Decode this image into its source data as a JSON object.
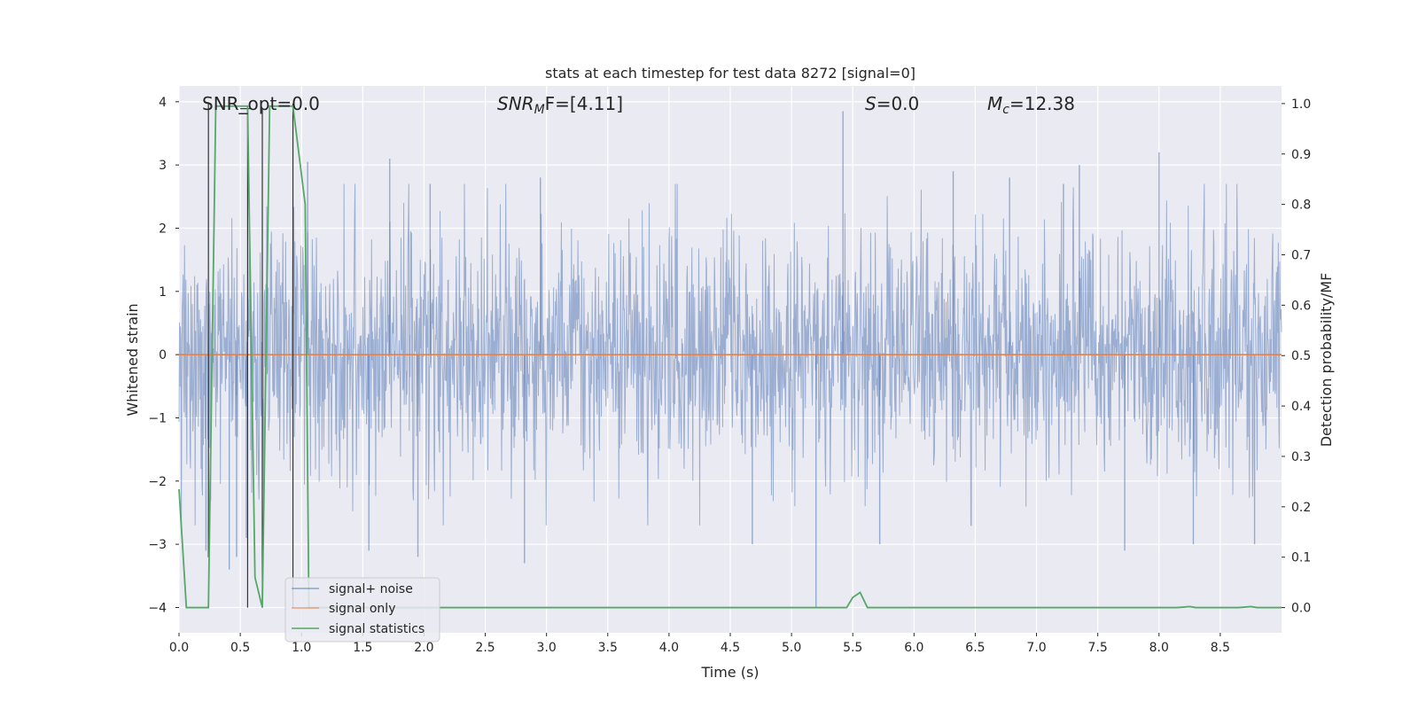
{
  "chart_data": {
    "type": "line",
    "title": "stats at each timestep for test data 8272 [signal=0]",
    "xlabel": "Time (s)",
    "ylabel_left": "Whitened strain",
    "ylabel_right": "Detection probability/MF",
    "xlim": [
      0,
      9.0
    ],
    "ylim_left": [
      -4.4,
      4.25
    ],
    "ylim_right": [
      -0.05,
      1.035
    ],
    "x_ticks": [
      0.0,
      0.5,
      1.0,
      1.5,
      2.0,
      2.5,
      3.0,
      3.5,
      4.0,
      4.5,
      5.0,
      5.5,
      6.0,
      6.5,
      7.0,
      7.5,
      8.0,
      8.5
    ],
    "x_tick_labels": [
      "0.0",
      "0.5",
      "1.0",
      "1.5",
      "2.0",
      "2.5",
      "3.0",
      "3.5",
      "4.0",
      "4.5",
      "5.0",
      "5.5",
      "6.0",
      "6.5",
      "7.0",
      "7.5",
      "8.0",
      "8.5"
    ],
    "y_left_ticks": [
      -4,
      -3,
      -2,
      -1,
      0,
      1,
      2,
      3,
      4
    ],
    "y_left_tick_labels": [
      "−4",
      "−3",
      "−2",
      "−1",
      "0",
      "1",
      "2",
      "3",
      "4"
    ],
    "y_right_ticks": [
      0.0,
      0.1,
      0.2,
      0.3,
      0.4,
      0.5,
      0.6,
      0.7,
      0.8,
      0.9,
      1.0
    ],
    "y_right_tick_labels": [
      "0.0",
      "0.1",
      "0.2",
      "0.3",
      "0.4",
      "0.5",
      "0.6",
      "0.7",
      "0.8",
      "0.9",
      "1.0"
    ],
    "grid": true,
    "annotations": {
      "snr_opt": "SNR_opt=0.0",
      "snr_mf_main": "SNR",
      "snr_mf_sub": "M",
      "snr_mf_rest": "F=[4.11]",
      "s_sym": "S",
      "s_val": "=0.0",
      "mc_sym": "M",
      "mc_sub": "c",
      "mc_val": "=12.38"
    },
    "legend": {
      "position": "lower-left",
      "entries": [
        "signal+ noise",
        "signal only",
        "signal statistics"
      ]
    },
    "series": [
      {
        "name": "signal+ noise",
        "axis": "left",
        "color": "#4c72b0",
        "kind": "noise",
        "typical_range": [
          -1.7,
          1.5
        ],
        "spikes": [
          {
            "x": 0.22,
            "y": -3.1
          },
          {
            "x": 0.41,
            "y": -3.4
          },
          {
            "x": 0.47,
            "y": -3.2
          },
          {
            "x": 0.55,
            "y": -2.9
          },
          {
            "x": 1.05,
            "y": 3.05
          },
          {
            "x": 1.55,
            "y": -3.1
          },
          {
            "x": 1.72,
            "y": 3.1
          },
          {
            "x": 1.95,
            "y": -3.2
          },
          {
            "x": 2.05,
            "y": 2.7
          },
          {
            "x": 2.82,
            "y": -3.3
          },
          {
            "x": 2.95,
            "y": 2.8
          },
          {
            "x": 4.68,
            "y": -3.0
          },
          {
            "x": 5.2,
            "y": -4.0
          },
          {
            "x": 5.42,
            "y": 3.85
          },
          {
            "x": 5.72,
            "y": -3.0
          },
          {
            "x": 6.32,
            "y": 2.9
          },
          {
            "x": 6.78,
            "y": 2.8
          },
          {
            "x": 7.22,
            "y": 2.7
          },
          {
            "x": 7.35,
            "y": 3.0
          },
          {
            "x": 7.72,
            "y": -3.1
          },
          {
            "x": 8.0,
            "y": 3.2
          },
          {
            "x": 8.28,
            "y": -3.0
          },
          {
            "x": 8.78,
            "y": -3.0
          }
        ]
      },
      {
        "name": "signal only",
        "axis": "left",
        "color": "#dd8452",
        "x": [
          0,
          9.0
        ],
        "y": [
          0,
          0
        ]
      },
      {
        "name": "signal statistics",
        "axis": "right",
        "color": "#55a868",
        "x": [
          0.0,
          0.06,
          0.24,
          0.3,
          0.56,
          0.62,
          0.68,
          0.74,
          0.93,
          1.03,
          1.06,
          5.45,
          5.5,
          5.56,
          5.62,
          8.15,
          8.25,
          8.3,
          8.65,
          8.75,
          8.8,
          9.0
        ],
        "y": [
          0.235,
          0.0,
          0.0,
          0.995,
          0.995,
          0.06,
          0.0,
          0.995,
          0.995,
          0.8,
          0.0,
          0.0,
          0.02,
          0.03,
          0.0,
          0.0,
          0.002,
          0.0,
          0.0,
          0.002,
          0.0,
          0.0
        ]
      }
    ],
    "vertical_markers": {
      "color": "#333333",
      "lines": [
        {
          "x": 0.24,
          "y_top_right": 1.0,
          "y_bottom_right": 0.1
        },
        {
          "x": 0.56,
          "y_top_right": 0.99,
          "y_bottom_right": 0.0
        },
        {
          "x": 0.68,
          "y_top_right": 0.99,
          "y_bottom_right": 0.0
        },
        {
          "x": 0.93,
          "y_top_right": 1.0,
          "y_bottom_right": 0.0
        }
      ],
      "caps": [
        {
          "x0": 0.5,
          "x1": 0.58,
          "y_right": 0.99
        }
      ]
    }
  }
}
